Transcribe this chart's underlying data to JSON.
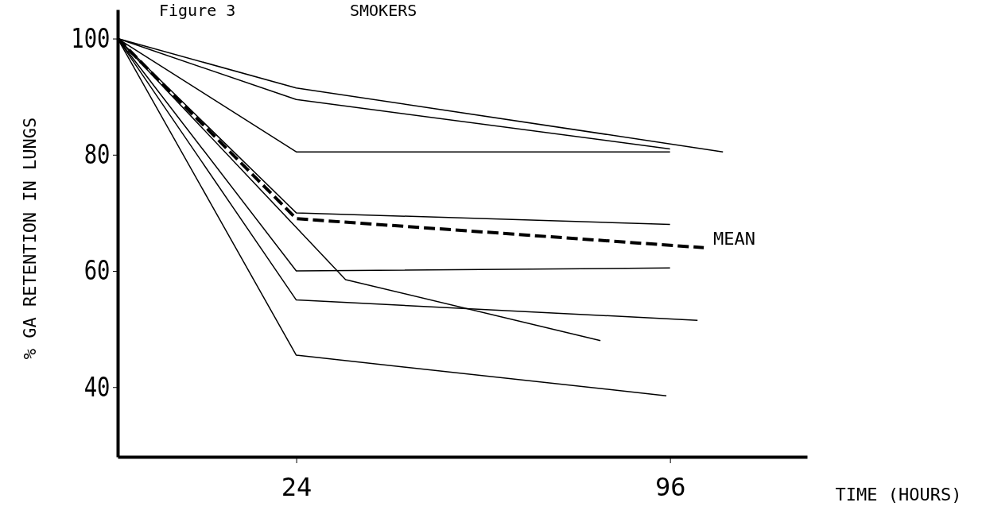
{
  "chart_data": {
    "type": "line",
    "title": "Figure 3",
    "subtitle": "SMOKERS",
    "xlabel": "TIME (HOURS)",
    "ylabel": "% GA RETENTION IN LUNGS",
    "xlim": [
      -10.4,
      122.4
    ],
    "xticks": [
      24,
      96
    ],
    "ylim": [
      28,
      105
    ],
    "yticks": [
      40,
      60,
      80,
      100
    ],
    "grid": false,
    "marker": "none",
    "series": [
      {
        "color": "#000000",
        "x": [
          -10.4,
          24,
          106.2
        ],
        "values": [
          100,
          91.5,
          80.5
        ]
      },
      {
        "color": "#000000",
        "x": [
          -10.4,
          24,
          96
        ],
        "values": [
          100,
          89.5,
          81
        ]
      },
      {
        "color": "#000000",
        "x": [
          -10.4,
          24,
          96
        ],
        "values": [
          100,
          80.5,
          80.5
        ]
      },
      {
        "color": "#000000",
        "x": [
          -10.4,
          24,
          96
        ],
        "values": [
          100,
          70,
          68
        ]
      },
      {
        "color": "#000000",
        "x": [
          -10.4,
          24,
          96
        ],
        "values": [
          100,
          60,
          60.5
        ]
      },
      {
        "color": "#000000",
        "x": [
          -10.4,
          33.5,
          82.6
        ],
        "values": [
          100,
          58.5,
          48
        ]
      },
      {
        "color": "#000000",
        "x": [
          -10.4,
          24,
          101.3
        ],
        "values": [
          100,
          55,
          51.5
        ]
      },
      {
        "color": "#000000",
        "x": [
          -10.4,
          24,
          95.3
        ],
        "values": [
          100,
          45.5,
          38.5
        ]
      },
      {
        "name": "MEAN",
        "color": "#000000",
        "line_style": "dashed",
        "x": [
          -10.4,
          24,
          102.5
        ],
        "values": [
          100,
          69,
          64
        ]
      }
    ]
  }
}
